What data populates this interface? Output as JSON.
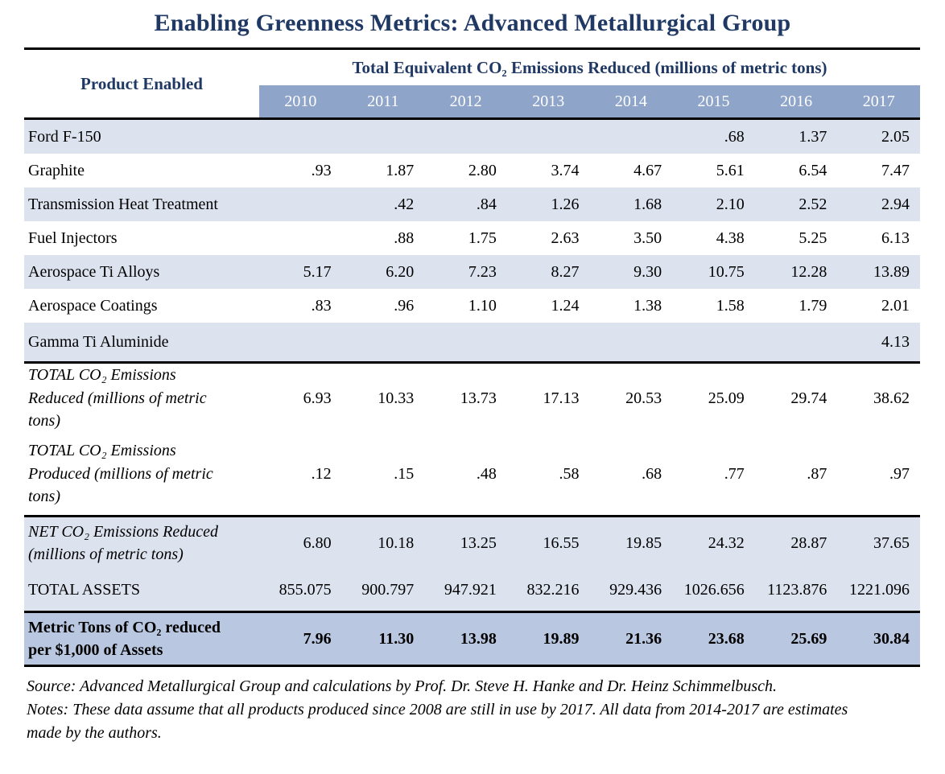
{
  "title": "Enabling Greenness Metrics: Advanced Metallurgical Group",
  "table": {
    "product_column_header": "Product Enabled",
    "span_header": "Total Equivalent CO₂ Emissions Reduced (millions of metric tons)",
    "years": [
      "2010",
      "2011",
      "2012",
      "2013",
      "2014",
      "2015",
      "2016",
      "2017"
    ],
    "rows": [
      {
        "label": "Ford F-150",
        "band": "light",
        "emphasis": null,
        "separator_top": false,
        "values": [
          "",
          "",
          "",
          "",
          "",
          ".68",
          "1.37",
          "2.05"
        ]
      },
      {
        "label": "Graphite",
        "band": "white",
        "emphasis": null,
        "separator_top": false,
        "values": [
          ".93",
          "1.87",
          "2.80",
          "3.74",
          "4.67",
          "5.61",
          "6.54",
          "7.47"
        ]
      },
      {
        "label": "Transmission Heat Treatment",
        "band": "light",
        "emphasis": null,
        "separator_top": false,
        "values": [
          "",
          ".42",
          ".84",
          "1.26",
          "1.68",
          "2.10",
          "2.52",
          "2.94"
        ]
      },
      {
        "label": "Fuel Injectors",
        "band": "white",
        "emphasis": null,
        "separator_top": false,
        "values": [
          "",
          ".88",
          "1.75",
          "2.63",
          "3.50",
          "4.38",
          "5.25",
          "6.13"
        ]
      },
      {
        "label": "Aerospace Ti Alloys",
        "band": "light",
        "emphasis": null,
        "separator_top": false,
        "values": [
          "5.17",
          "6.20",
          "7.23",
          "8.27",
          "9.30",
          "10.75",
          "12.28",
          "13.89"
        ]
      },
      {
        "label": "Aerospace Coatings",
        "band": "white",
        "emphasis": null,
        "separator_top": false,
        "values": [
          ".83",
          ".96",
          "1.10",
          "1.24",
          "1.38",
          "1.58",
          "1.79",
          "2.01"
        ]
      },
      {
        "label": "Gamma Ti Aluminide",
        "band": "light",
        "emphasis": null,
        "separator_top": false,
        "values": [
          "",
          "",
          "",
          "",
          "",
          "",
          "",
          "4.13"
        ]
      },
      {
        "label": "TOTAL CO₂ Emissions Reduced (millions of metric tons)",
        "band": "white",
        "emphasis": "italic",
        "separator_top": true,
        "values": [
          "6.93",
          "10.33",
          "13.73",
          "17.13",
          "20.53",
          "25.09",
          "29.74",
          "38.62"
        ]
      },
      {
        "label": "TOTAL CO₂ Emissions Produced (millions of metric tons)",
        "band": "white",
        "emphasis": "italic",
        "separator_top": false,
        "values": [
          ".12",
          ".15",
          ".48",
          ".58",
          ".68",
          ".77",
          ".87",
          ".97"
        ]
      },
      {
        "label": "NET CO₂ Emissions Reduced (millions of metric tons)",
        "band": "light",
        "emphasis": "italic",
        "separator_top": true,
        "values": [
          "6.80",
          "10.18",
          "13.25",
          "16.55",
          "19.85",
          "24.32",
          "28.87",
          "37.65"
        ]
      },
      {
        "label": "TOTAL ASSETS",
        "band": "light",
        "emphasis": null,
        "separator_top": false,
        "values": [
          "855.075",
          "900.797",
          "947.921",
          "832.216",
          "929.436",
          "1026.656",
          "1123.876",
          "1221.096"
        ]
      },
      {
        "label": "Metric Tons of CO₂ reduced per $1,000 of Assets",
        "band": "dark",
        "emphasis": "bold",
        "separator_top": true,
        "values": [
          "7.96",
          "11.30",
          "13.98",
          "19.89",
          "21.36",
          "23.68",
          "25.69",
          "30.84"
        ]
      }
    ]
  },
  "footer": {
    "source": "Source: Advanced Metallurgical Group and calculations by Prof. Dr. Steve H. Hanke and Dr. Heinz Schimmelbusch.",
    "notes": "Notes: These data assume that all products produced since 2008 are still in use by 2017. All data from 2014-2017 are estimates made by the authors."
  },
  "colors": {
    "heading_navy": "#1F3864",
    "year_header_bg": "#8EA4C8",
    "row_band_light": "#DCE3EF",
    "row_band_dark": "#B9C7E0",
    "rule_black": "#000000"
  }
}
